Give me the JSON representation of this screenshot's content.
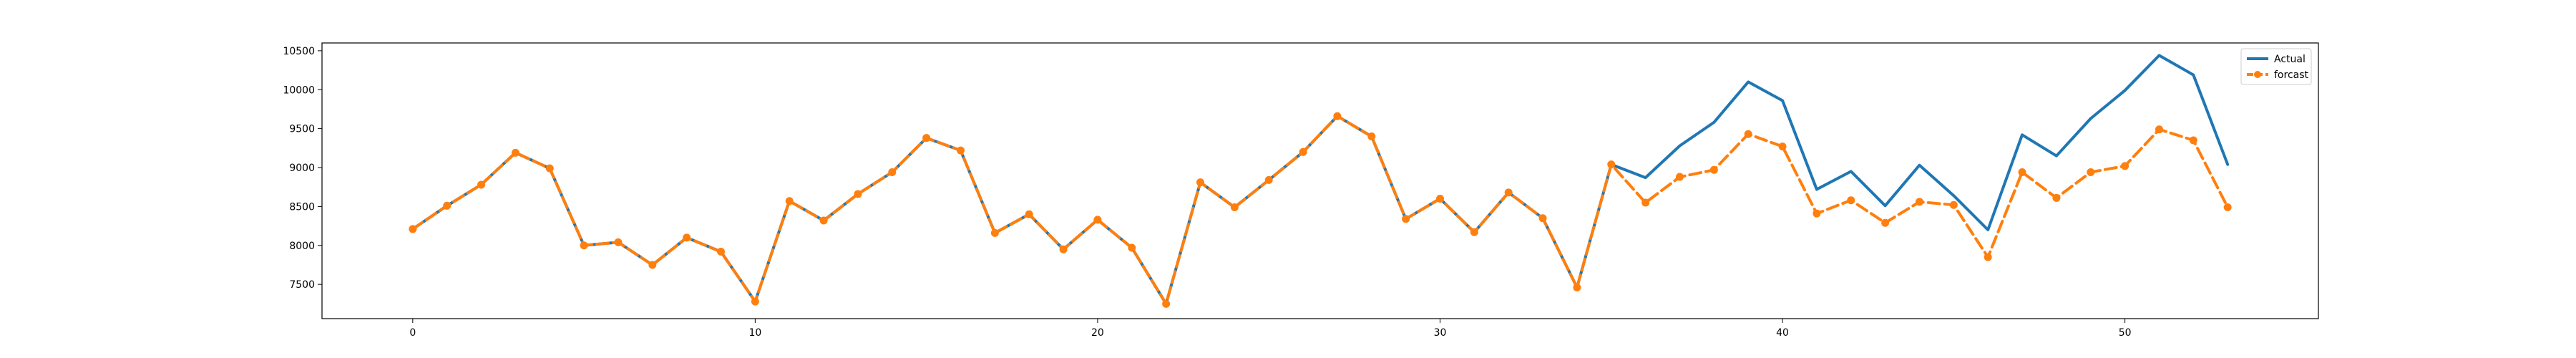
{
  "chart_data": {
    "type": "line",
    "title": "",
    "xlabel": "",
    "ylabel": "",
    "xlim": [
      -2.65,
      55.65
    ],
    "ylim": [
      7060,
      10600
    ],
    "grid": false,
    "legend_position": "top-right",
    "x_ticks": [
      0,
      10,
      20,
      30,
      40,
      50
    ],
    "y_ticks": [
      7500,
      8000,
      8500,
      9000,
      9500,
      10000,
      10500
    ],
    "x": [
      0,
      1,
      2,
      3,
      4,
      5,
      6,
      7,
      8,
      9,
      10,
      11,
      12,
      13,
      14,
      15,
      16,
      17,
      18,
      19,
      20,
      21,
      22,
      23,
      24,
      25,
      26,
      27,
      28,
      29,
      30,
      31,
      32,
      33,
      34,
      35,
      36,
      37,
      38,
      39,
      40,
      41,
      42,
      43,
      44,
      45,
      46,
      47,
      48,
      49,
      50,
      51,
      52,
      53
    ],
    "series": [
      {
        "name": "Actual",
        "color": "#1f77b4",
        "style": "solid",
        "marker": "none",
        "values": [
          8210,
          8510,
          8780,
          9190,
          8990,
          8000,
          8040,
          7750,
          8100,
          7920,
          7280,
          8570,
          8320,
          8660,
          8940,
          9380,
          9220,
          8160,
          8400,
          7950,
          8330,
          7970,
          7250,
          8810,
          8490,
          8840,
          9200,
          9660,
          9400,
          8340,
          8600,
          8170,
          8680,
          8350,
          7460,
          9040,
          8870,
          9280,
          9580,
          10100,
          9860,
          8720,
          8950,
          8510,
          9030,
          8640,
          8200,
          9420,
          9150,
          9630,
          9990,
          10440,
          10190,
          9040
        ]
      },
      {
        "name": "forcast",
        "color": "#ff7f0e",
        "style": "dashed",
        "marker": "circle",
        "values": [
          8210,
          8510,
          8780,
          9190,
          8990,
          8000,
          8040,
          7750,
          8100,
          7920,
          7280,
          8570,
          8320,
          8660,
          8940,
          9380,
          9220,
          8160,
          8400,
          7950,
          8330,
          7970,
          7250,
          8810,
          8490,
          8840,
          9200,
          9660,
          9400,
          8340,
          8600,
          8170,
          8680,
          8350,
          7460,
          9040,
          8550,
          8880,
          8970,
          9430,
          9270,
          8410,
          8580,
          8290,
          8560,
          8520,
          7850,
          8940,
          8610,
          8940,
          9020,
          9490,
          9350,
          8490
        ]
      }
    ]
  }
}
